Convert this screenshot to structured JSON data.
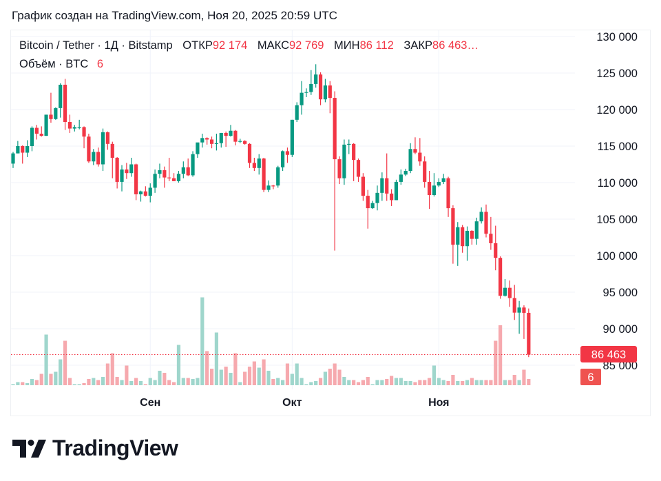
{
  "caption": "График создан на TradingView.com, Ноя 20, 2025 20:59 UTC",
  "legend": {
    "symbol": "Bitcoin / Tether · 1Д · Bitstamp",
    "open_label": "ОТКР",
    "open_value": "92 174",
    "high_label": "МАКС",
    "high_value": "92 769",
    "low_label": "МИН",
    "low_value": "86 112",
    "close_label": "ЗАКР",
    "close_value": "86 463…",
    "volume_label": "Объём · BTC",
    "volume_value": "6"
  },
  "logo_text": "TradingView",
  "colors": {
    "up": "#089981",
    "down": "#F23645",
    "up_volume": "#9fd6cc",
    "down_volume": "#f6a9ae",
    "grid": "#f0f3fa"
  },
  "chart_data": {
    "type": "candlestick",
    "interval": "1D",
    "y_ticks": [
      "130 000",
      "125 000",
      "120 000",
      "115 000",
      "110 000",
      "105 000",
      "100 000",
      "95 000",
      "90 000",
      "85 000"
    ],
    "y_tick_values": [
      130000,
      125000,
      120000,
      115000,
      110000,
      105000,
      100000,
      95000,
      90000,
      85000
    ],
    "x_ticks": [
      {
        "label": "Сен",
        "date": "2025-09-01"
      },
      {
        "label": "Окт",
        "date": "2025-10-01"
      },
      {
        "label": "Ноя",
        "date": "2025-11-01"
      }
    ],
    "last_price_label": "86 463",
    "last_volume_label": "6",
    "columns": [
      "date",
      "open",
      "high",
      "low",
      "close",
      "volume"
    ],
    "candles": [
      [
        "2025-08-03",
        112600,
        114200,
        112000,
        114000,
        1
      ],
      [
        "2025-08-04",
        114000,
        115700,
        114000,
        115000,
        3
      ],
      [
        "2025-08-05",
        115000,
        115100,
        112600,
        114100,
        3
      ],
      [
        "2025-08-06",
        114100,
        115800,
        113500,
        115000,
        2
      ],
      [
        "2025-08-07",
        115000,
        117700,
        114300,
        117500,
        6
      ],
      [
        "2025-08-08",
        117500,
        117900,
        115900,
        116700,
        5
      ],
      [
        "2025-08-09",
        116700,
        117700,
        116300,
        116400,
        11
      ],
      [
        "2025-08-10",
        116400,
        119300,
        116400,
        119300,
        49
      ],
      [
        "2025-08-11",
        119300,
        122300,
        118200,
        118700,
        11
      ],
      [
        "2025-08-12",
        118700,
        120300,
        118600,
        120200,
        13
      ],
      [
        "2025-08-13",
        120200,
        123600,
        118900,
        123400,
        25
      ],
      [
        "2025-08-14",
        123400,
        124200,
        117200,
        118300,
        43
      ],
      [
        "2025-08-15",
        118300,
        119300,
        116800,
        117400,
        7
      ],
      [
        "2025-08-16",
        117400,
        117900,
        117000,
        117600,
        1
      ],
      [
        "2025-08-17",
        117600,
        118600,
        117300,
        117600,
        1
      ],
      [
        "2025-08-18",
        117600,
        117700,
        114700,
        116300,
        2
      ],
      [
        "2025-08-19",
        116300,
        116700,
        112700,
        112900,
        6
      ],
      [
        "2025-08-20",
        112900,
        114600,
        112400,
        114200,
        7
      ],
      [
        "2025-08-21",
        114200,
        114800,
        112200,
        112500,
        5
      ],
      [
        "2025-08-22",
        112500,
        117400,
        111600,
        116900,
        8
      ],
      [
        "2025-08-23",
        116900,
        117000,
        114500,
        115300,
        21
      ],
      [
        "2025-08-24",
        115300,
        115600,
        110600,
        113400,
        31
      ],
      [
        "2025-08-25",
        113400,
        113500,
        109200,
        110100,
        8
      ],
      [
        "2025-08-26",
        110100,
        112400,
        108800,
        111800,
        5
      ],
      [
        "2025-08-27",
        111800,
        112700,
        110500,
        111300,
        19
      ],
      [
        "2025-08-28",
        111300,
        113400,
        110800,
        112500,
        4
      ],
      [
        "2025-08-29",
        112500,
        112600,
        107600,
        108400,
        7
      ],
      [
        "2025-08-30",
        108400,
        108900,
        107400,
        108800,
        4
      ],
      [
        "2025-08-31",
        108800,
        109500,
        108100,
        108200,
        1
      ],
      [
        "2025-09-01",
        108200,
        109900,
        107300,
        109300,
        7
      ],
      [
        "2025-09-02",
        109300,
        111800,
        108600,
        111200,
        5
      ],
      [
        "2025-09-03",
        111200,
        112600,
        110600,
        111700,
        14
      ],
      [
        "2025-09-04",
        111700,
        112200,
        109300,
        110700,
        12
      ],
      [
        "2025-09-05",
        110700,
        113400,
        110200,
        110600,
        5
      ],
      [
        "2025-09-06",
        110600,
        111300,
        110200,
        110200,
        3
      ],
      [
        "2025-09-07",
        110200,
        111600,
        110000,
        111200,
        39
      ],
      [
        "2025-09-08",
        111200,
        112900,
        110600,
        112100,
        7
      ],
      [
        "2025-09-09",
        112100,
        113300,
        110900,
        111000,
        7
      ],
      [
        "2025-09-10",
        111000,
        114300,
        110800,
        113900,
        6
      ],
      [
        "2025-09-11",
        113900,
        115400,
        113400,
        115500,
        7
      ],
      [
        "2025-09-12",
        115500,
        116700,
        114800,
        116100,
        85
      ],
      [
        "2025-09-13",
        116100,
        116200,
        115200,
        115900,
        33
      ],
      [
        "2025-09-14",
        115900,
        116300,
        114700,
        115300,
        16
      ],
      [
        "2025-09-15",
        115300,
        116700,
        114400,
        115400,
        51
      ],
      [
        "2025-09-16",
        115400,
        116800,
        114800,
        116800,
        15
      ],
      [
        "2025-09-17",
        116800,
        117000,
        114900,
        116400,
        18
      ],
      [
        "2025-09-18",
        116400,
        117900,
        116300,
        117100,
        12
      ],
      [
        "2025-09-19",
        117100,
        117200,
        115100,
        115600,
        31
      ],
      [
        "2025-09-20",
        115600,
        116000,
        115400,
        115700,
        3
      ],
      [
        "2025-09-21",
        115700,
        115800,
        115200,
        115300,
        13
      ],
      [
        "2025-09-22",
        115300,
        115400,
        112000,
        112700,
        18
      ],
      [
        "2025-09-23",
        112700,
        113400,
        111600,
        112000,
        23
      ],
      [
        "2025-09-24",
        112000,
        113900,
        111100,
        113300,
        17
      ],
      [
        "2025-09-25",
        113300,
        113400,
        108700,
        109000,
        25
      ],
      [
        "2025-09-26",
        109000,
        110300,
        108700,
        109600,
        14
      ],
      [
        "2025-09-27",
        109600,
        109700,
        109100,
        109500,
        6
      ],
      [
        "2025-09-28",
        109600,
        112300,
        109300,
        112100,
        7
      ],
      [
        "2025-09-29",
        112100,
        114400,
        111600,
        114300,
        5
      ],
      [
        "2025-09-30",
        114300,
        114800,
        112700,
        113800,
        21
      ],
      [
        "2025-10-01",
        113800,
        118600,
        113500,
        118600,
        11
      ],
      [
        "2025-10-02",
        118600,
        121000,
        118300,
        120600,
        21
      ],
      [
        "2025-10-03",
        120600,
        123900,
        119300,
        122300,
        7
      ],
      [
        "2025-10-04",
        122300,
        122900,
        121700,
        122400,
        1
      ],
      [
        "2025-10-05",
        122400,
        125400,
        122000,
        123500,
        3
      ],
      [
        "2025-10-06",
        123500,
        126200,
        123000,
        124800,
        4
      ],
      [
        "2025-10-07",
        124800,
        125100,
        120600,
        121400,
        7
      ],
      [
        "2025-10-08",
        121400,
        124200,
        121000,
        123300,
        13
      ],
      [
        "2025-10-09",
        123300,
        123900,
        119500,
        121600,
        16
      ],
      [
        "2025-10-10",
        121600,
        122500,
        100700,
        113200,
        21
      ],
      [
        "2025-10-11",
        113200,
        113600,
        109800,
        110600,
        15
      ],
      [
        "2025-10-12",
        110600,
        115900,
        109700,
        115200,
        8
      ],
      [
        "2025-10-13",
        115200,
        115900,
        113900,
        115300,
        5
      ],
      [
        "2025-10-14",
        115300,
        115400,
        110200,
        113100,
        5
      ],
      [
        "2025-10-15",
        113100,
        113300,
        110100,
        110800,
        3
      ],
      [
        "2025-10-16",
        110800,
        111300,
        107500,
        108200,
        5
      ],
      [
        "2025-10-17",
        108200,
        109000,
        103700,
        106500,
        8
      ],
      [
        "2025-10-18",
        106500,
        107500,
        106400,
        107200,
        1
      ],
      [
        "2025-10-19",
        107200,
        109600,
        106200,
        108600,
        5
      ],
      [
        "2025-10-20",
        108600,
        111400,
        107500,
        110600,
        5
      ],
      [
        "2025-10-21",
        110600,
        114000,
        107500,
        108500,
        6
      ],
      [
        "2025-10-22",
        108500,
        109100,
        106800,
        107600,
        9
      ],
      [
        "2025-10-23",
        107600,
        110400,
        107600,
        110100,
        7
      ],
      [
        "2025-10-24",
        110100,
        111800,
        109700,
        111100,
        7
      ],
      [
        "2025-10-25",
        111100,
        111900,
        110900,
        111600,
        4
      ],
      [
        "2025-10-26",
        111600,
        115400,
        111300,
        114600,
        4
      ],
      [
        "2025-10-27",
        114600,
        116200,
        113900,
        114100,
        3
      ],
      [
        "2025-10-28",
        114100,
        116100,
        112300,
        112900,
        5
      ],
      [
        "2025-10-29",
        112900,
        113600,
        109300,
        110100,
        5
      ],
      [
        "2025-10-30",
        110100,
        111600,
        106400,
        108300,
        7
      ],
      [
        "2025-10-31",
        108300,
        111300,
        108100,
        109600,
        19
      ],
      [
        "2025-11-01",
        109600,
        110600,
        109400,
        110100,
        7
      ],
      [
        "2025-11-02",
        110100,
        111200,
        109800,
        110600,
        5
      ],
      [
        "2025-11-03",
        110600,
        110800,
        105300,
        106500,
        4
      ],
      [
        "2025-11-04",
        106500,
        106900,
        98900,
        101500,
        10
      ],
      [
        "2025-11-05",
        101500,
        104600,
        98600,
        103900,
        4
      ],
      [
        "2025-11-06",
        103900,
        104200,
        100400,
        101300,
        4
      ],
      [
        "2025-11-07",
        101300,
        104000,
        99300,
        103400,
        5
      ],
      [
        "2025-11-08",
        103400,
        103500,
        101500,
        102300,
        7
      ],
      [
        "2025-11-09",
        102300,
        105200,
        101500,
        104700,
        5
      ],
      [
        "2025-11-10",
        104700,
        106600,
        104400,
        106000,
        5
      ],
      [
        "2025-11-11",
        106000,
        107000,
        102500,
        103000,
        5
      ],
      [
        "2025-11-12",
        103000,
        105300,
        100800,
        101700,
        5
      ],
      [
        "2025-11-13",
        101700,
        104100,
        98000,
        99700,
        43
      ],
      [
        "2025-11-14",
        99700,
        99900,
        94100,
        94500,
        58
      ],
      [
        "2025-11-15",
        94500,
        96800,
        94400,
        95600,
        5
      ],
      [
        "2025-11-16",
        95600,
        96600,
        93000,
        94200,
        5
      ],
      [
        "2025-11-17",
        94200,
        96000,
        91200,
        92200,
        10
      ],
      [
        "2025-11-18",
        92200,
        93800,
        89300,
        92900,
        5
      ],
      [
        "2025-11-19",
        92900,
        93200,
        88600,
        92174,
        15
      ],
      [
        "2025-11-20",
        92174,
        92769,
        86112,
        86463,
        6
      ]
    ]
  }
}
